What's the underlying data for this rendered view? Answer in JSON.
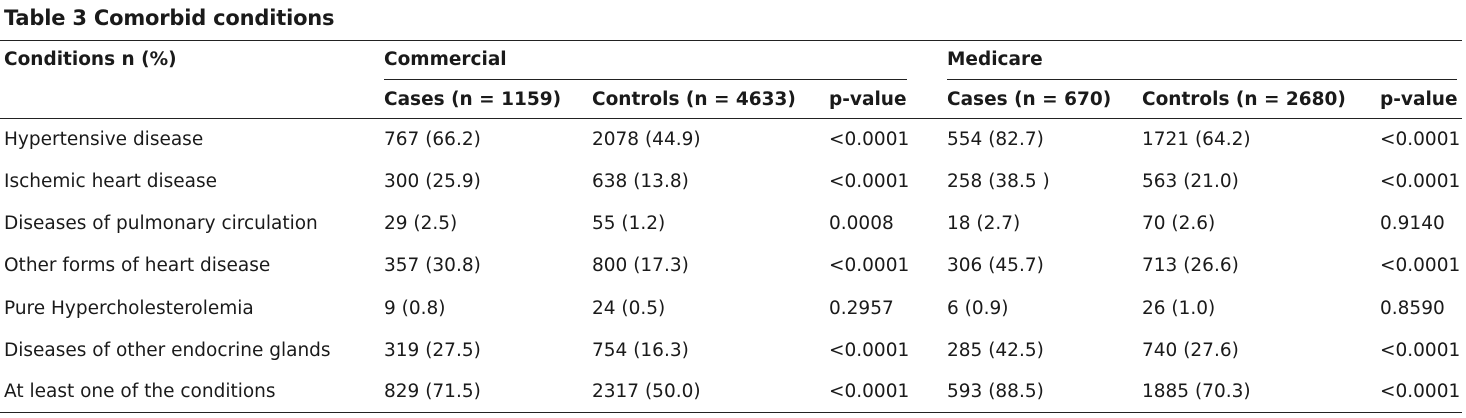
{
  "table": {
    "title": "Table 3 Comorbid conditions",
    "group_headers": {
      "conditions": "Conditions n (%)",
      "commercial": "Commercial",
      "medicare": "Medicare"
    },
    "column_headers": [
      "Cases (n = 1159)",
      "Controls (n = 4633)",
      "p-value",
      "Cases (n = 670)",
      "Controls (n = 2680)",
      "p-value"
    ],
    "rows": [
      {
        "condition": "Hypertensive disease",
        "values": [
          "767 (66.2)",
          "2078 (44.9)",
          "<0.0001",
          "554 (82.7)",
          "1721 (64.2)",
          "<0.0001"
        ]
      },
      {
        "condition": "Ischemic heart disease",
        "values": [
          "300 (25.9)",
          "638 (13.8)",
          "<0.0001",
          "258 (38.5 )",
          "563 (21.0)",
          "<0.0001"
        ]
      },
      {
        "condition": "Diseases of pulmonary circulation",
        "values": [
          "29 (2.5)",
          "55 (1.2)",
          "0.0008",
          "18 (2.7)",
          "70 (2.6)",
          "0.9140"
        ]
      },
      {
        "condition": "Other forms of heart disease",
        "values": [
          "357 (30.8)",
          "800 (17.3)",
          "<0.0001",
          "306 (45.7)",
          "713 (26.6)",
          "<0.0001"
        ]
      },
      {
        "condition": "Pure Hypercholesterolemia",
        "values": [
          "9 (0.8)",
          "24 (0.5)",
          "0.2957",
          "6 (0.9)",
          "26 (1.0)",
          "0.8590"
        ]
      },
      {
        "condition": "Diseases of other endocrine glands",
        "values": [
          "319 (27.5)",
          "754 (16.3)",
          "<0.0001",
          "285 (42.5)",
          "740 (27.6)",
          "<0.0001"
        ]
      },
      {
        "condition": "At least one of the conditions",
        "values": [
          "829 (71.5)",
          "2317 (50.0)",
          "<0.0001",
          "593 (88.5)",
          "1885 (70.3)",
          "<0.0001"
        ]
      }
    ]
  }
}
